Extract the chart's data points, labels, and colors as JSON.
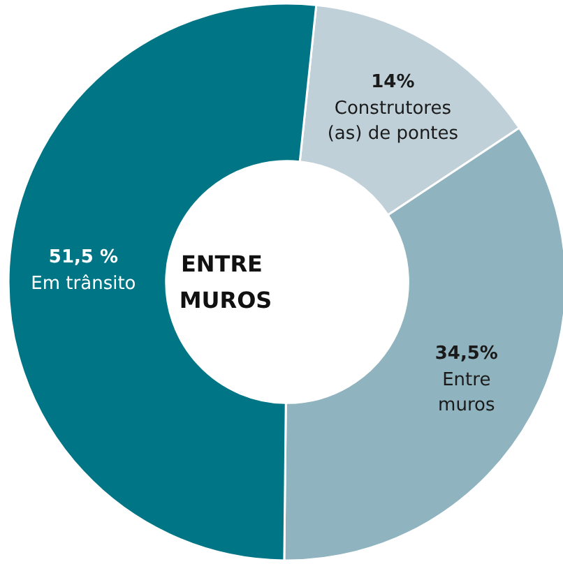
{
  "chart_data": {
    "type": "donut",
    "title": "ENTRE MUROS",
    "categories": [
      "Construtores (as) de pontes",
      "Entre muros",
      "Em trânsito"
    ],
    "values": [
      14,
      34.5,
      51.5
    ],
    "value_labels": [
      "14%",
      "34,5%",
      "51,5 %"
    ],
    "colors": [
      "#bfd0d9",
      "#8fb3bf",
      "#007585"
    ],
    "legend": false
  }
}
